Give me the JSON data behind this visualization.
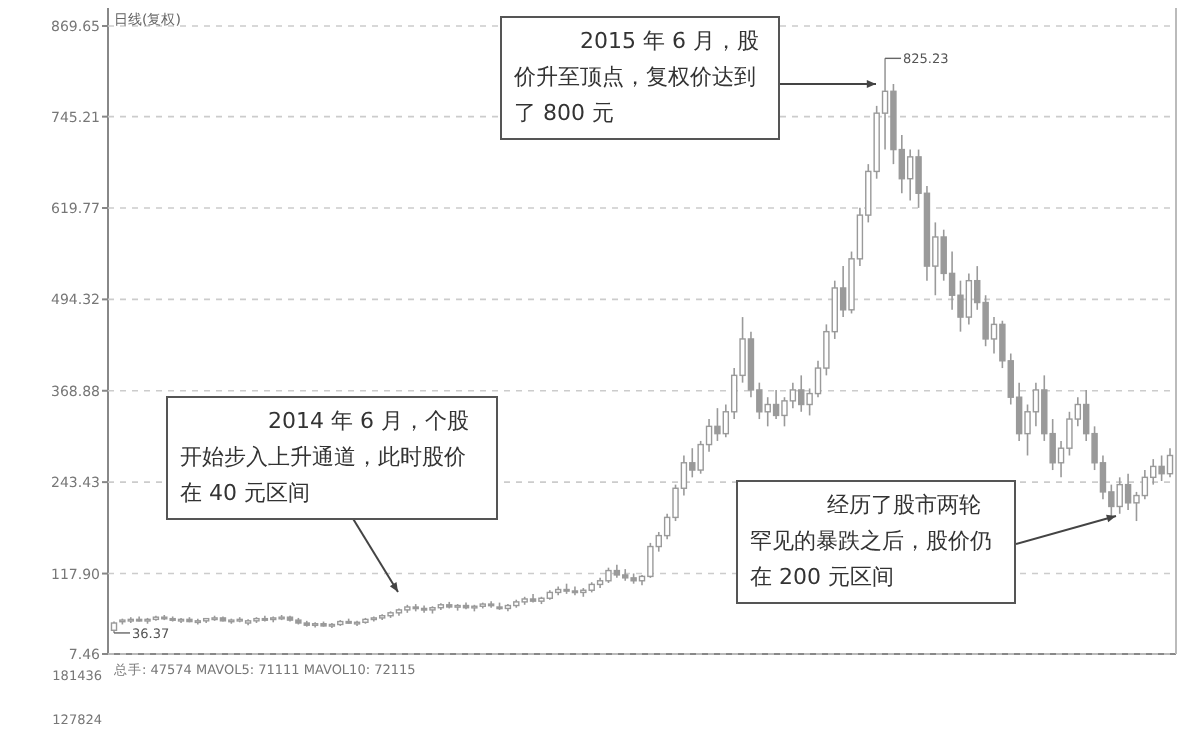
{
  "chart_data": [
    {
      "type": "candlestick",
      "title": "日线(复权)",
      "color": "#9a9a9a",
      "tick_labels": "y",
      "grid": "y",
      "ylim": [
        7.46,
        869.65
      ],
      "yticks": [
        7.46,
        {
          "value": 117.9,
          "label": "117.90"
        },
        243.43,
        368.88,
        494.32,
        619.77,
        745.21,
        869.65
      ],
      "categories": [
        null,
        null,
        null,
        null,
        null,
        null,
        null,
        null,
        null,
        null,
        null,
        null,
        null,
        null,
        null,
        null,
        null,
        null,
        null,
        null,
        null,
        null,
        null,
        null,
        null,
        null,
        null,
        null,
        null,
        null,
        null,
        null,
        null,
        null,
        null,
        null,
        null,
        null,
        null,
        null,
        null,
        null,
        null,
        null,
        null,
        null,
        null,
        null,
        null,
        null,
        null,
        null,
        null,
        null,
        null,
        null,
        null,
        null,
        null,
        null,
        null,
        null,
        null,
        null,
        null,
        null,
        null,
        null,
        null,
        null,
        null,
        null,
        null,
        null,
        null,
        null,
        null,
        null,
        null,
        null,
        null,
        null,
        null,
        null,
        null,
        null,
        null,
        null,
        null,
        null,
        null,
        null,
        null,
        null,
        null,
        null,
        null,
        null,
        null,
        null,
        null,
        null,
        null,
        null,
        null,
        null,
        null,
        null,
        null,
        null,
        null,
        null,
        null,
        null,
        null,
        null,
        null,
        null,
        null,
        null,
        null,
        null,
        null,
        null,
        null,
        null,
        null
      ],
      "ohlc": [
        [
          40,
          52,
          36.37,
          50
        ],
        [
          52,
          56,
          48,
          54
        ],
        [
          54,
          58,
          50,
          55
        ],
        [
          55,
          59,
          52,
          53
        ],
        [
          53,
          57,
          49,
          55
        ],
        [
          55,
          60,
          53,
          58
        ],
        [
          58,
          61,
          54,
          56
        ],
        [
          56,
          59,
          52,
          54
        ],
        [
          54,
          57,
          50,
          55
        ],
        [
          55,
          58,
          51,
          52
        ],
        [
          52,
          56,
          48,
          53
        ],
        [
          53,
          57,
          50,
          56
        ],
        [
          56,
          60,
          53,
          57
        ],
        [
          57,
          59,
          52,
          53
        ],
        [
          53,
          56,
          49,
          54
        ],
        [
          54,
          58,
          51,
          55
        ],
        [
          50,
          55,
          47,
          53
        ],
        [
          53,
          58,
          50,
          56
        ],
        [
          56,
          60,
          52,
          55
        ],
        [
          55,
          59,
          51,
          57
        ],
        [
          57,
          61,
          54,
          58
        ],
        [
          58,
          60,
          52,
          54
        ],
        [
          54,
          57,
          48,
          50
        ],
        [
          50,
          53,
          45,
          47
        ],
        [
          47,
          51,
          44,
          49
        ],
        [
          49,
          52,
          45,
          46
        ],
        [
          46,
          50,
          43,
          48
        ],
        [
          48,
          54,
          46,
          52
        ],
        [
          52,
          56,
          49,
          50
        ],
        [
          50,
          53,
          46,
          51
        ],
        [
          51,
          57,
          49,
          55
        ],
        [
          55,
          59,
          52,
          57
        ],
        [
          57,
          62,
          54,
          60
        ],
        [
          60,
          66,
          57,
          64
        ],
        [
          64,
          70,
          60,
          68
        ],
        [
          68,
          75,
          64,
          72
        ],
        [
          72,
          76,
          66,
          70
        ],
        [
          70,
          74,
          64,
          68
        ],
        [
          68,
          73,
          63,
          71
        ],
        [
          71,
          77,
          68,
          75
        ],
        [
          75,
          79,
          70,
          72
        ],
        [
          72,
          76,
          67,
          74
        ],
        [
          74,
          78,
          69,
          71
        ],
        [
          71,
          75,
          66,
          73
        ],
        [
          73,
          78,
          70,
          76
        ],
        [
          76,
          80,
          71,
          74
        ],
        [
          72,
          78,
          68,
          70
        ],
        [
          70,
          76,
          66,
          74
        ],
        [
          74,
          82,
          71,
          79
        ],
        [
          79,
          86,
          75,
          83
        ],
        [
          83,
          90,
          78,
          80
        ],
        [
          80,
          86,
          76,
          84
        ],
        [
          84,
          95,
          82,
          92
        ],
        [
          92,
          100,
          88,
          96
        ],
        [
          96,
          104,
          90,
          94
        ],
        [
          94,
          100,
          88,
          92
        ],
        [
          92,
          98,
          86,
          95
        ],
        [
          95,
          106,
          92,
          103
        ],
        [
          103,
          112,
          98,
          108
        ],
        [
          108,
          126,
          105,
          122
        ],
        [
          122,
          130,
          112,
          116
        ],
        [
          116,
          124,
          108,
          112
        ],
        [
          112,
          118,
          104,
          108
        ],
        [
          108,
          116,
          102,
          114
        ],
        [
          114,
          160,
          112,
          155
        ],
        [
          155,
          175,
          148,
          170
        ],
        [
          170,
          200,
          165,
          195
        ],
        [
          195,
          240,
          190,
          235
        ],
        [
          235,
          280,
          225,
          270
        ],
        [
          270,
          290,
          250,
          260
        ],
        [
          260,
          300,
          255,
          295
        ],
        [
          295,
          330,
          285,
          320
        ],
        [
          320,
          345,
          300,
          310
        ],
        [
          310,
          350,
          305,
          340
        ],
        [
          340,
          400,
          330,
          390
        ],
        [
          390,
          470,
          380,
          440
        ],
        [
          440,
          450,
          360,
          370
        ],
        [
          370,
          380,
          330,
          340
        ],
        [
          340,
          360,
          320,
          350
        ],
        [
          350,
          370,
          330,
          335
        ],
        [
          335,
          360,
          320,
          355
        ],
        [
          355,
          380,
          345,
          370
        ],
        [
          370,
          390,
          340,
          350
        ],
        [
          350,
          372,
          335,
          365
        ],
        [
          365,
          410,
          360,
          400
        ],
        [
          400,
          460,
          390,
          450
        ],
        [
          450,
          520,
          440,
          510
        ],
        [
          510,
          540,
          470,
          480
        ],
        [
          480,
          560,
          475,
          550
        ],
        [
          550,
          620,
          540,
          610
        ],
        [
          610,
          680,
          600,
          670
        ],
        [
          670,
          760,
          660,
          750
        ],
        [
          750,
          825.23,
          700,
          780
        ],
        [
          780,
          790,
          680,
          700
        ],
        [
          700,
          720,
          640,
          660
        ],
        [
          660,
          700,
          630,
          690
        ],
        [
          690,
          700,
          620,
          640
        ],
        [
          640,
          650,
          520,
          540
        ],
        [
          540,
          600,
          500,
          580
        ],
        [
          580,
          590,
          520,
          530
        ],
        [
          530,
          560,
          480,
          500
        ],
        [
          500,
          520,
          450,
          470
        ],
        [
          470,
          530,
          460,
          520
        ],
        [
          520,
          540,
          480,
          490
        ],
        [
          490,
          500,
          430,
          440
        ],
        [
          440,
          470,
          420,
          460
        ],
        [
          460,
          465,
          400,
          410
        ],
        [
          410,
          420,
          350,
          360
        ],
        [
          360,
          380,
          300,
          310
        ],
        [
          310,
          350,
          280,
          340
        ],
        [
          340,
          380,
          320,
          370
        ],
        [
          370,
          390,
          300,
          310
        ],
        [
          310,
          330,
          260,
          270
        ],
        [
          270,
          300,
          250,
          290
        ],
        [
          290,
          340,
          280,
          330
        ],
        [
          330,
          360,
          320,
          350
        ],
        [
          350,
          370,
          300,
          310
        ],
        [
          310,
          320,
          260,
          270
        ],
        [
          270,
          280,
          220,
          230
        ],
        [
          230,
          240,
          195,
          210
        ],
        [
          210,
          250,
          200,
          240
        ],
        [
          240,
          255,
          205,
          215
        ],
        [
          215,
          230,
          190,
          225
        ],
        [
          225,
          260,
          220,
          250
        ],
        [
          250,
          275,
          240,
          265
        ],
        [
          265,
          280,
          245,
          255
        ],
        [
          255,
          290,
          250,
          280
        ]
      ],
      "annotations": [
        "2015 年 6 月，股价升至顶点，复权价达到了 800 元",
        "2014 年 6 月，个股开始步入上升通道，此时股价在 40 元区间",
        "经历了股市两轮罕见的暴跌之后，股价仍在 200 元区间",
        "825.23",
        "36.37"
      ]
    },
    {
      "type": "other",
      "annotations": [
        "181436",
        "总手: 47574 MAVOL5: 71111 MAVOL10: 72115",
        "127824"
      ]
    }
  ]
}
